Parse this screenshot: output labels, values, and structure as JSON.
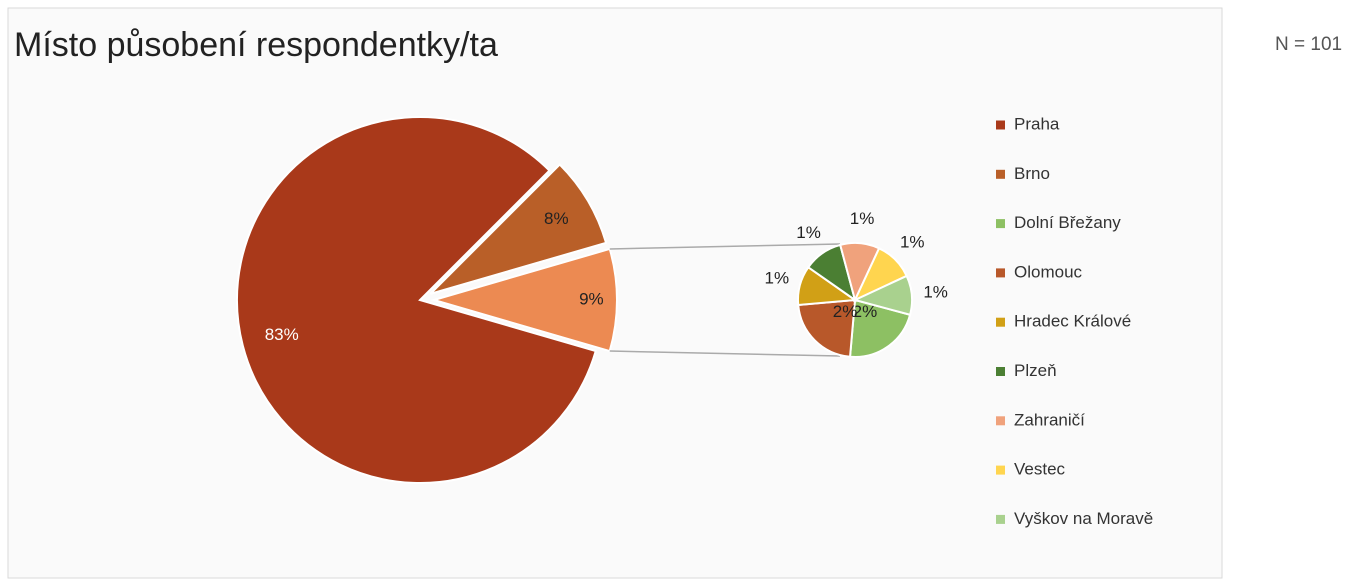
{
  "chart_data": {
    "type": "pie-of-pie",
    "title": "Místo působení respondentky/ta",
    "annotation": "N = 101",
    "categories": [
      "Praha",
      "Brno",
      "Dolní Břežany",
      "Olomouc",
      "Hradec Králové",
      "Plzeň",
      "Zahraničí",
      "Vestec",
      "Vyškov na Moravě"
    ],
    "values": [
      83,
      8,
      2,
      2,
      1,
      1,
      1,
      1,
      1
    ],
    "value_labels": [
      "83%",
      "8%",
      "2%",
      "2%",
      "1%",
      "1%",
      "1%",
      "1%",
      "1%"
    ],
    "colors": [
      "#a9391a",
      "#b95f28",
      "#8dc063",
      "#b8582a",
      "#d1a016",
      "#4b7f33",
      "#f0a27c",
      "#ffd54f",
      "#a9d18e"
    ],
    "other_value": 9,
    "other_value_label": "9%",
    "other_color": "#ec8a52",
    "legend": "right"
  }
}
